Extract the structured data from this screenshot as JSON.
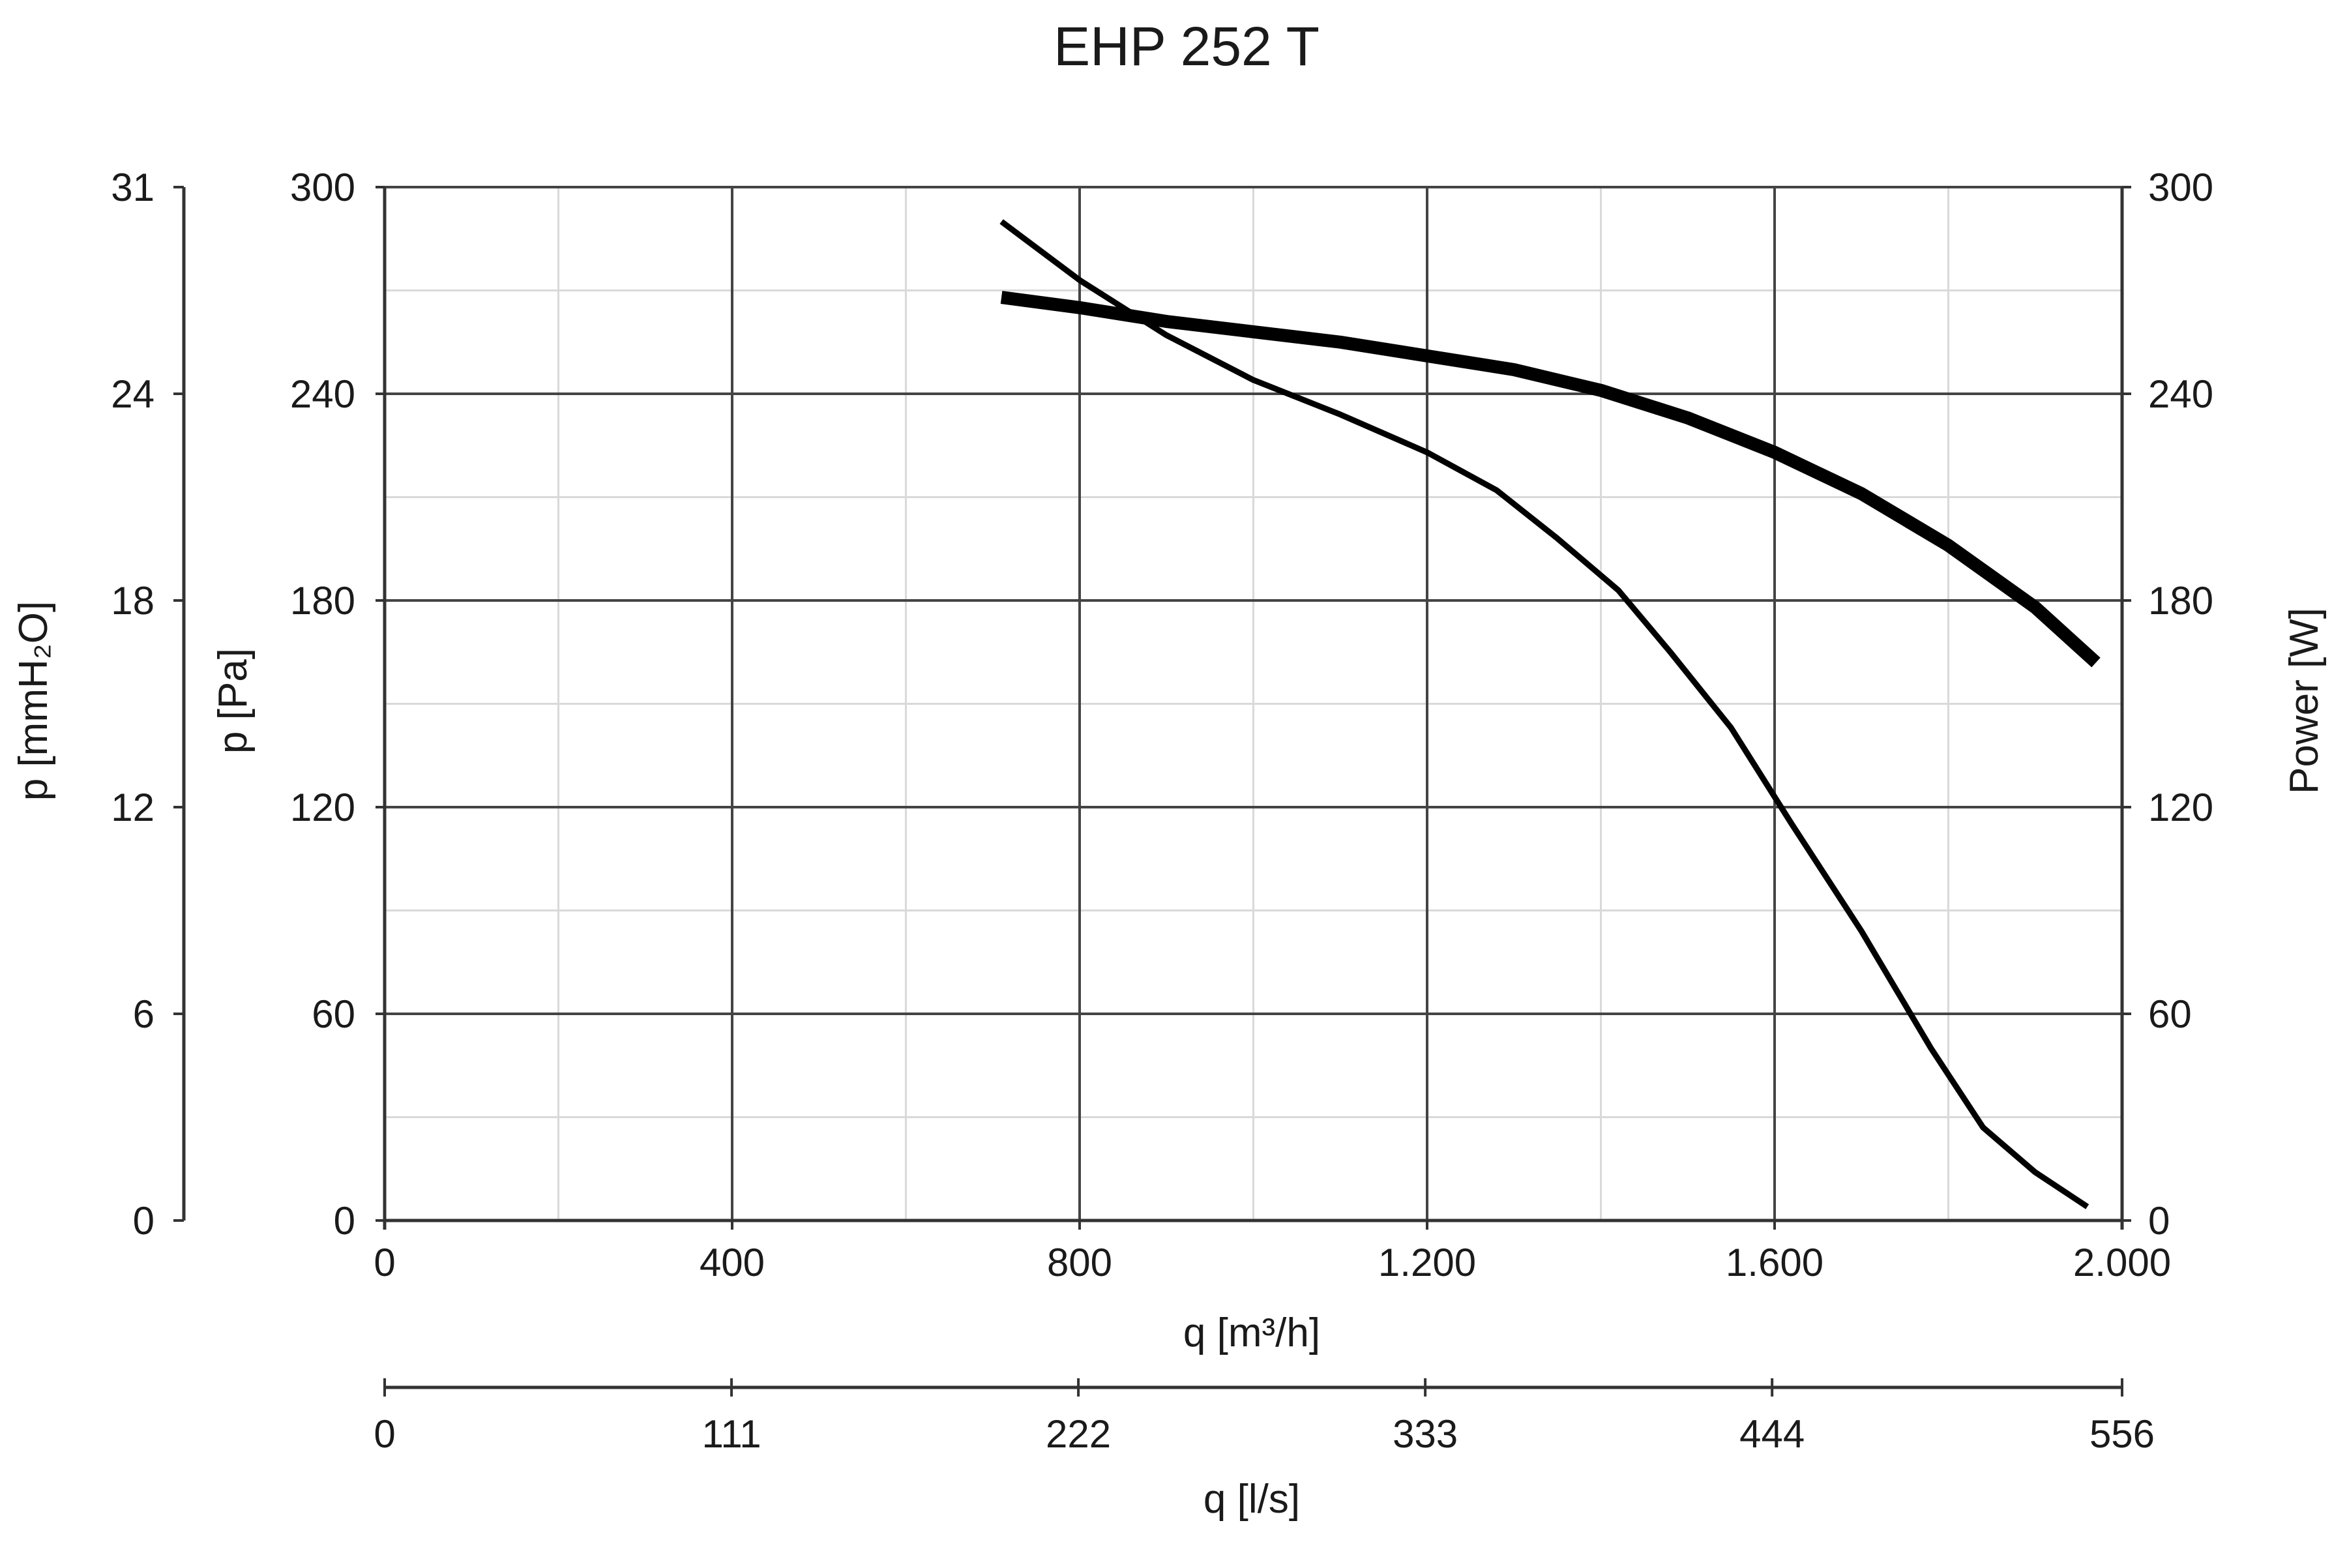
{
  "chart_data": {
    "type": "line",
    "title": "EHP 252 T",
    "x_axis": {
      "label": "q [m³/h]",
      "range": [
        0,
        2000
      ],
      "ticks": [
        0,
        400,
        800,
        1200,
        1600,
        2000
      ],
      "tick_labels": [
        "0",
        "400",
        "800",
        "1.200",
        "1.600",
        "2.000"
      ],
      "minor_grid": [
        200,
        600,
        1000,
        1400,
        1800
      ]
    },
    "x_axis_secondary": {
      "label": "q [l/s]",
      "range": [
        0,
        556
      ],
      "ticks": [
        0,
        111,
        222,
        333,
        444,
        556
      ],
      "tick_labels": [
        "0",
        "111",
        "222",
        "333",
        "444",
        "556"
      ]
    },
    "y_axis_left": {
      "label": "p [Pa]",
      "range": [
        0,
        300
      ],
      "ticks": [
        0,
        60,
        120,
        180,
        240,
        300
      ],
      "tick_labels": [
        "0",
        "60",
        "120",
        "180",
        "240",
        "300"
      ],
      "minor_grid": [
        30,
        90,
        150,
        210,
        270
      ]
    },
    "y_axis_far_left": {
      "label": "p [mmH₂O]",
      "range": [
        0,
        31
      ],
      "tick_labels": [
        "0",
        "6",
        "12",
        "18",
        "24",
        "31"
      ]
    },
    "y_axis_right": {
      "label": "Power [W]",
      "range": [
        0,
        300
      ],
      "ticks": [
        0,
        60,
        120,
        180,
        240,
        300
      ],
      "tick_labels": [
        "0",
        "60",
        "120",
        "180",
        "240",
        "300"
      ]
    },
    "grid": true,
    "series": [
      {
        "role": "pressure",
        "axis": "left",
        "x": [
          710,
          800,
          900,
          1000,
          1100,
          1200,
          1280,
          1350,
          1420,
          1480,
          1550,
          1620,
          1700,
          1780,
          1840,
          1900,
          1960
        ],
        "y": [
          290,
          273,
          257,
          244,
          234,
          223,
          212,
          198,
          183,
          165,
          143,
          115,
          84,
          50,
          27,
          14,
          4
        ]
      },
      {
        "role": "power",
        "axis": "right",
        "x": [
          710,
          800,
          900,
          1000,
          1100,
          1200,
          1300,
          1400,
          1500,
          1600,
          1700,
          1800,
          1900,
          1970
        ],
        "y": [
          268,
          265,
          261,
          258,
          255,
          251,
          247,
          241,
          233,
          223,
          211,
          196,
          178,
          162
        ]
      }
    ]
  }
}
